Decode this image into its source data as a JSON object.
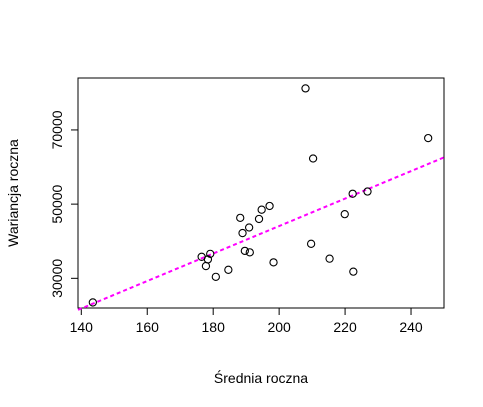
{
  "chart_data": {
    "type": "scatter",
    "xlabel": "Średnia roczna",
    "ylabel": "Wariancja roczna",
    "xlim": [
      139,
      250
    ],
    "ylim": [
      22000,
      84000
    ],
    "x_ticks": [
      140,
      160,
      180,
      200,
      220,
      240
    ],
    "y_ticks": [
      30000,
      50000,
      70000
    ],
    "x_tick_labels": [
      "140",
      "160",
      "180",
      "200",
      "220",
      "240"
    ],
    "y_tick_labels": [
      "30000",
      "50000",
      "70000"
    ],
    "grid": false,
    "points": [
      {
        "x": 143.5,
        "y": 23500
      },
      {
        "x": 176.5,
        "y": 35800
      },
      {
        "x": 177.8,
        "y": 33300
      },
      {
        "x": 178.4,
        "y": 35100
      },
      {
        "x": 179.1,
        "y": 36600
      },
      {
        "x": 180.8,
        "y": 30400
      },
      {
        "x": 184.6,
        "y": 32300
      },
      {
        "x": 188.2,
        "y": 46300
      },
      {
        "x": 188.9,
        "y": 42200
      },
      {
        "x": 189.6,
        "y": 37400
      },
      {
        "x": 190.9,
        "y": 43700
      },
      {
        "x": 191.1,
        "y": 37000
      },
      {
        "x": 193.9,
        "y": 46000
      },
      {
        "x": 194.7,
        "y": 48500
      },
      {
        "x": 197.1,
        "y": 49500
      },
      {
        "x": 198.3,
        "y": 34300
      },
      {
        "x": 208.0,
        "y": 81200
      },
      {
        "x": 209.7,
        "y": 39300
      },
      {
        "x": 210.3,
        "y": 62300
      },
      {
        "x": 215.3,
        "y": 35300
      },
      {
        "x": 219.9,
        "y": 47300
      },
      {
        "x": 222.3,
        "y": 52800
      },
      {
        "x": 222.5,
        "y": 31800
      },
      {
        "x": 226.8,
        "y": 53400
      },
      {
        "x": 245.2,
        "y": 67800
      }
    ],
    "trend_line": {
      "style": "dashed",
      "color": "#ff00ff",
      "x": [
        139,
        250
      ],
      "y": [
        21500,
        62600
      ]
    },
    "colors": {
      "points": "#000000",
      "trend": "#ff00ff"
    }
  }
}
